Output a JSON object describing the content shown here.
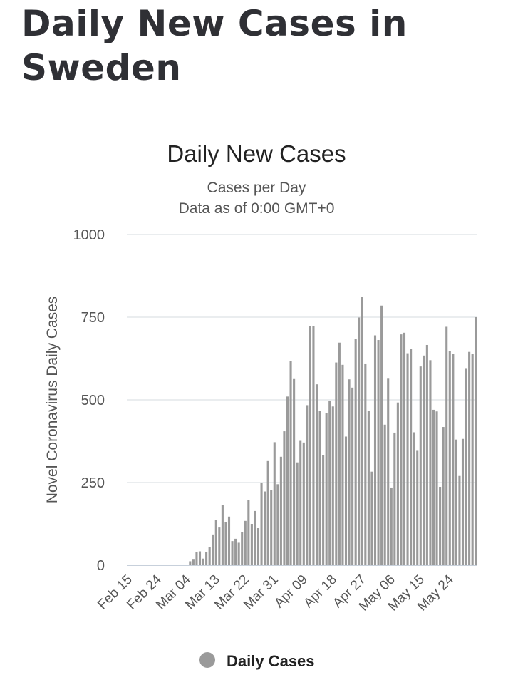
{
  "page": {
    "title": "Daily New Cases in Sweden"
  },
  "colors": {
    "bar": "#9a9a9a",
    "grid": "#e3e7ea",
    "axis_line": "#c7d0db",
    "text_dark": "#222222",
    "text_mid": "#555555",
    "title_text": "#2f3035"
  },
  "legend": {
    "marker": "circle-marker",
    "label": "Daily Cases"
  },
  "chart_data": {
    "type": "bar",
    "title": "Daily New Cases",
    "subtitle_lines": [
      "Cases per Day",
      "Data as of 0:00 GMT+0"
    ],
    "ylabel": "Novel Coronavirus Daily Cases",
    "xlabel": "",
    "ylim": [
      0,
      1000
    ],
    "yticks": [
      0,
      250,
      500,
      750,
      1000
    ],
    "grid": true,
    "legend_position": "bottom-center",
    "start_date": "Feb 15",
    "xtick_labels": [
      "Feb 15",
      "Feb 24",
      "Mar 04",
      "Mar 13",
      "Mar 22",
      "Mar 31",
      "Apr 09",
      "Apr 18",
      "Apr 27",
      "May 06",
      "May 15",
      "May 24"
    ],
    "series": [
      {
        "name": "Daily Cases",
        "values": [
          0,
          0,
          0,
          0,
          0,
          0,
          0,
          0,
          0,
          0,
          0,
          0,
          0,
          0,
          0,
          0,
          0,
          0,
          0,
          12,
          19,
          41,
          42,
          20,
          41,
          54,
          93,
          136,
          114,
          183,
          130,
          147,
          73,
          80,
          68,
          101,
          134,
          198,
          125,
          164,
          112,
          250,
          223,
          315,
          228,
          372,
          245,
          328,
          405,
          510,
          617,
          563,
          311,
          376,
          371,
          484,
          724,
          723,
          547,
          467,
          332,
          461,
          496,
          480,
          613,
          673,
          606,
          389,
          562,
          537,
          684,
          749,
          811,
          610,
          466,
          283,
          695,
          681,
          785,
          425,
          564,
          235,
          401,
          492,
          698,
          703,
          641,
          655,
          402,
          346,
          601,
          634,
          666,
          620,
          470,
          465,
          237,
          418,
          721,
          647,
          638,
          380,
          270,
          382,
          596,
          645,
          640,
          750
        ]
      }
    ]
  }
}
